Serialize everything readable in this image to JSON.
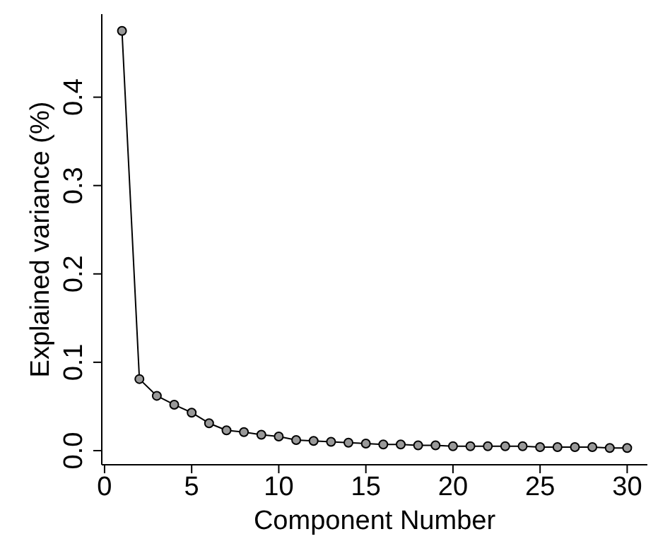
{
  "chart_data": {
    "type": "line",
    "xlabel": "Component Number",
    "ylabel": "Explained variance (%)",
    "x": [
      1,
      2,
      3,
      4,
      5,
      6,
      7,
      8,
      9,
      10,
      11,
      12,
      13,
      14,
      15,
      16,
      17,
      18,
      19,
      20,
      21,
      22,
      23,
      24,
      25,
      26,
      27,
      28,
      29,
      30
    ],
    "series": [
      {
        "color": "#000000",
        "values": [
          0.475,
          0.081,
          0.062,
          0.052,
          0.043,
          0.031,
          0.023,
          0.021,
          0.018,
          0.016,
          0.012,
          0.011,
          0.01,
          0.009,
          0.008,
          0.007,
          0.007,
          0.006,
          0.006,
          0.005,
          0.005,
          0.005,
          0.005,
          0.005,
          0.004,
          0.004,
          0.004,
          0.004,
          0.003,
          0.003
        ]
      }
    ],
    "xlim": [
      -0.16,
      31.16
    ],
    "xticks": [
      0,
      5,
      10,
      15,
      20,
      25,
      30
    ],
    "ylim": [
      -0.016,
      0.494
    ],
    "yticks": [
      {
        "value": 0,
        "label": "0.0"
      },
      {
        "value": 0.1,
        "label": "0.1"
      },
      {
        "value": 0.2,
        "label": "0.2"
      },
      {
        "value": 0.3,
        "label": "0.3"
      },
      {
        "value": 0.4,
        "label": "0.4"
      }
    ],
    "grid": false,
    "legend": false,
    "marker": "circle",
    "line_style": "solid"
  }
}
